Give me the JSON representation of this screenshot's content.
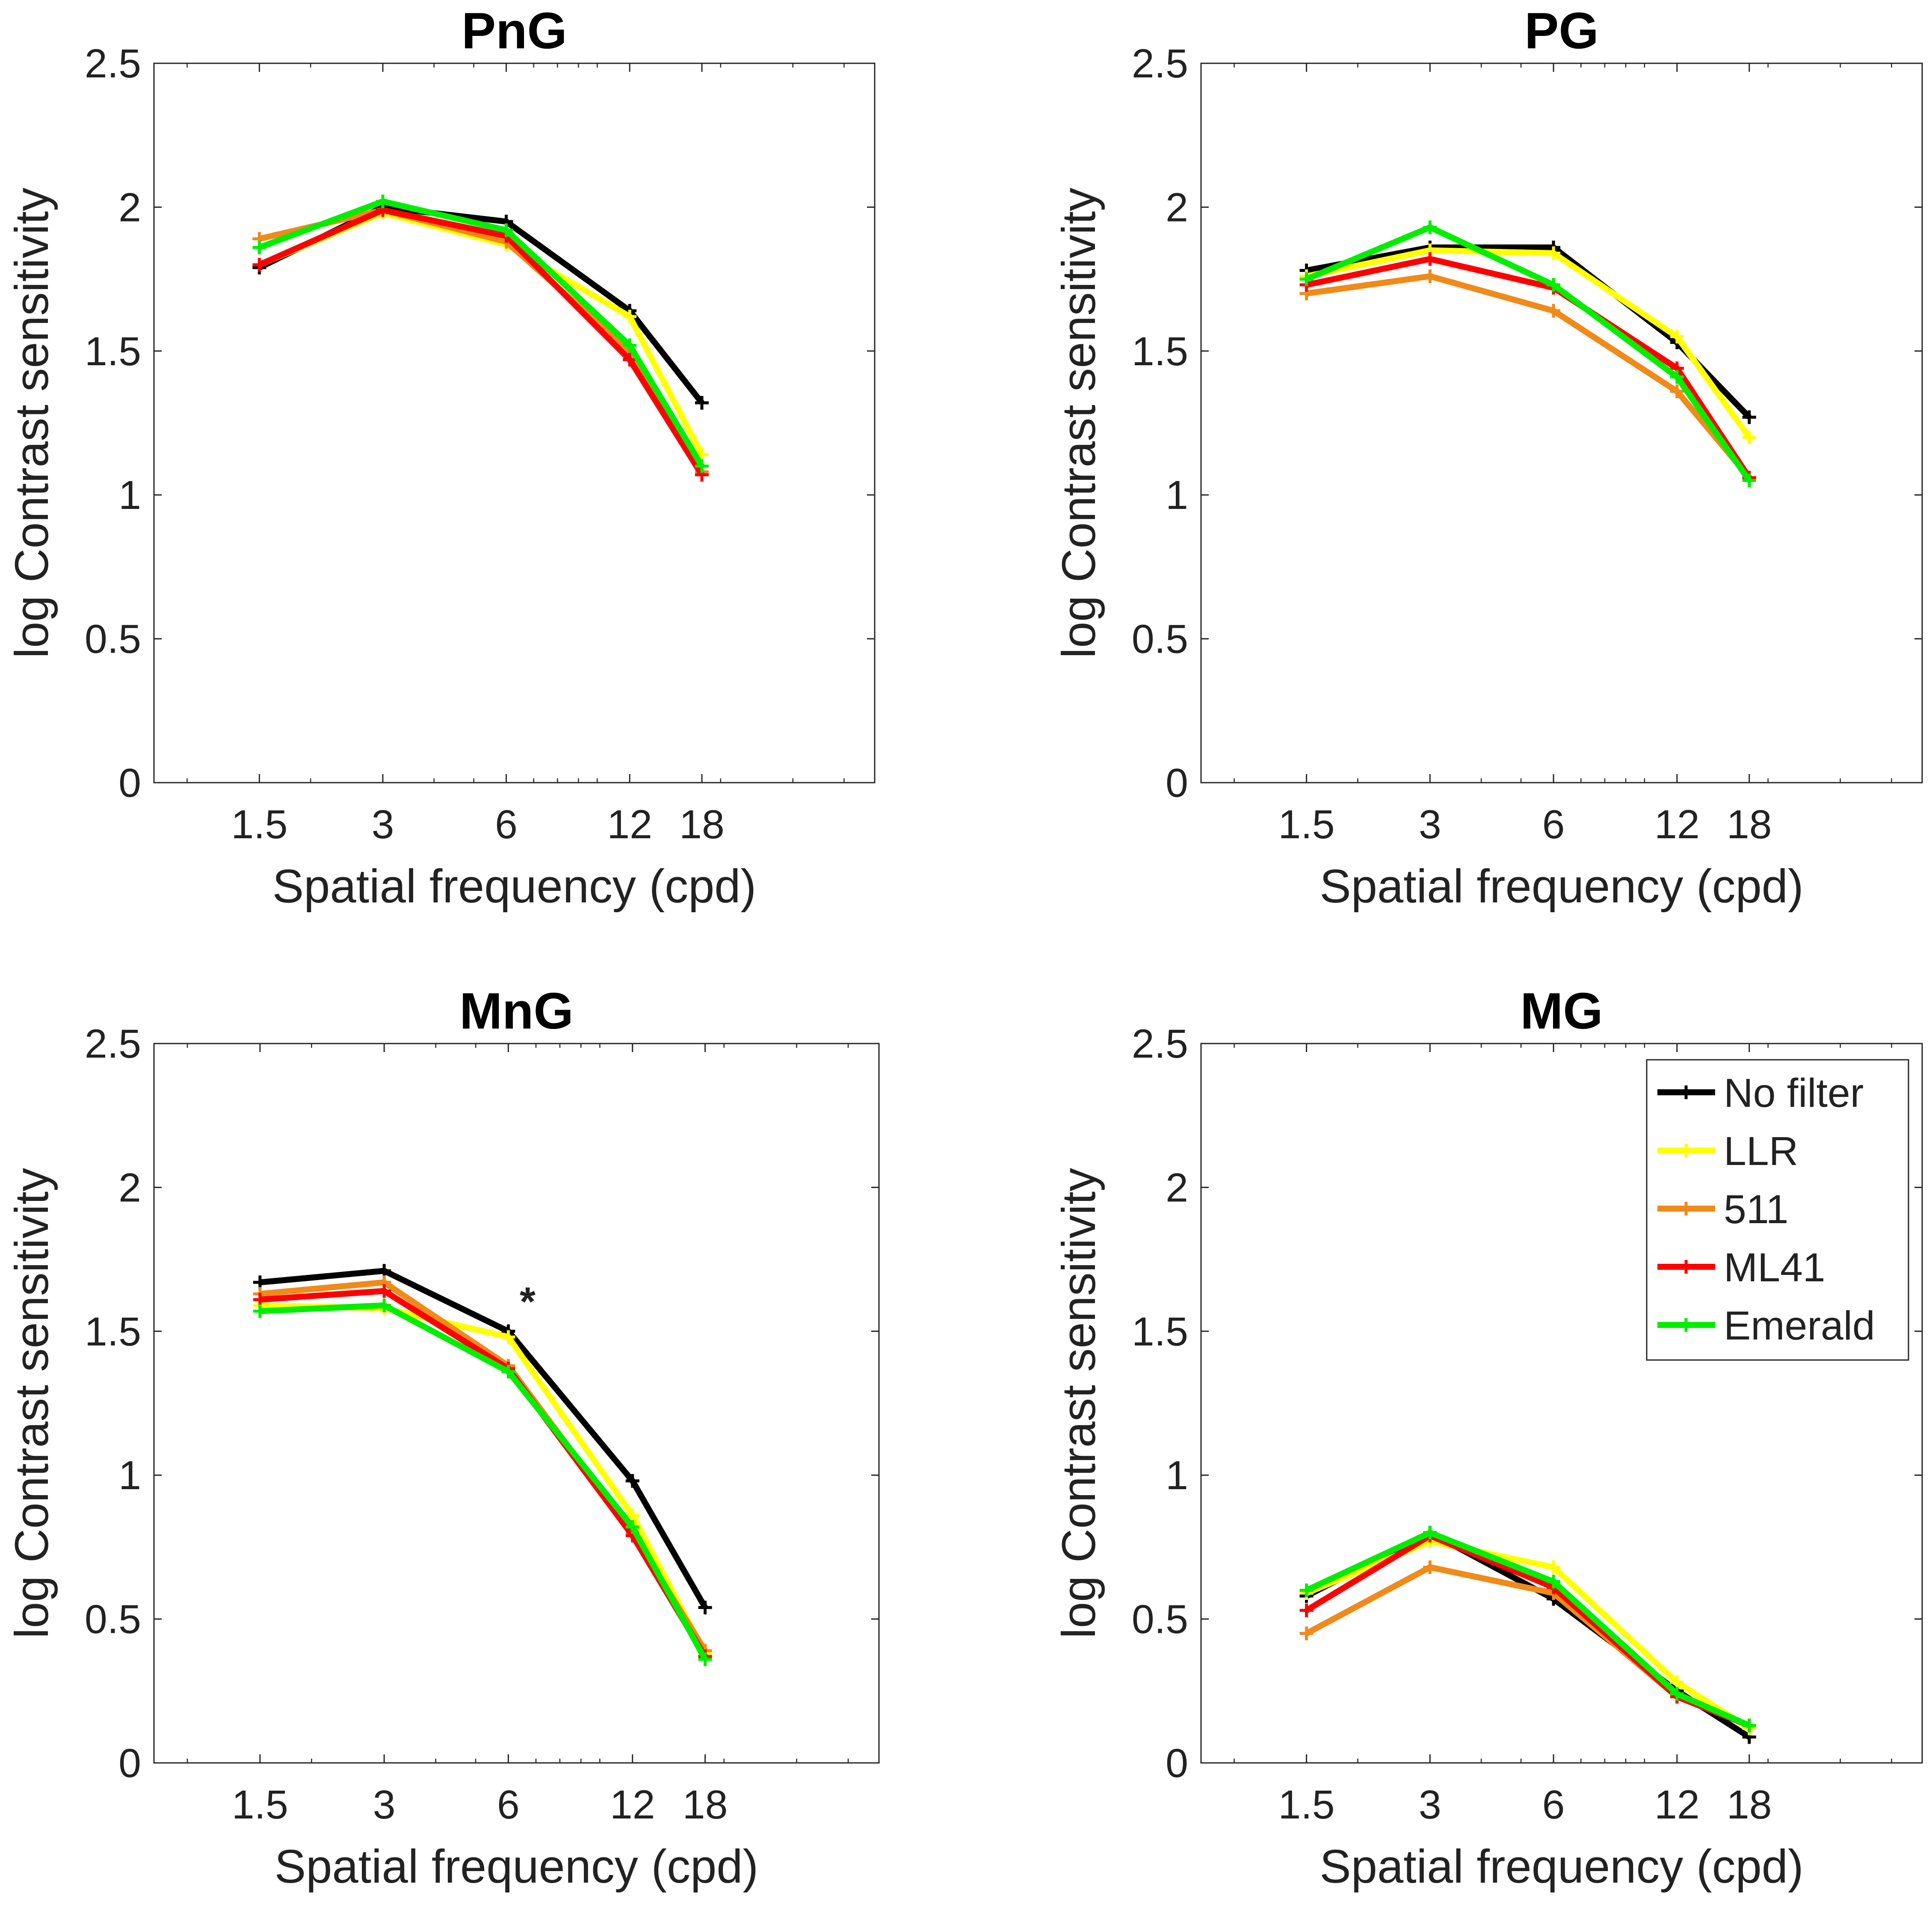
{
  "chart_data": [
    {
      "type": "line",
      "title": "PnG",
      "xlabel": "Spatial frequency (cpd)",
      "ylabel": "log Contrast sensitivity",
      "x_scale": "log",
      "x": [
        1.5,
        3,
        6,
        12,
        18
      ],
      "x_tick_labels": [
        "1.5",
        "3",
        "6",
        "12",
        "18"
      ],
      "ylim": [
        0,
        2.5
      ],
      "y_ticks": [
        "0",
        "0.5",
        "1",
        "1.5",
        "2",
        "2.5"
      ],
      "annotations": [],
      "series": [
        {
          "name": "No filter",
          "color": "#000000",
          "values": [
            1.79,
            2.0,
            1.95,
            1.64,
            1.32
          ]
        },
        {
          "name": "LLR",
          "color": "#ffff00",
          "values": [
            1.8,
            1.98,
            1.87,
            1.62,
            1.14
          ]
        },
        {
          "name": "511",
          "color": "#f08a19",
          "values": [
            1.89,
            1.99,
            1.88,
            1.5,
            1.08
          ]
        },
        {
          "name": "ML41",
          "color": "#ff0000",
          "values": [
            1.8,
            1.99,
            1.9,
            1.47,
            1.07
          ]
        },
        {
          "name": "Emerald",
          "color": "#00ee00",
          "values": [
            1.86,
            2.02,
            1.92,
            1.52,
            1.1
          ]
        }
      ]
    },
    {
      "type": "line",
      "title": "PG",
      "xlabel": "Spatial frequency (cpd)",
      "ylabel": "log Contrast sensitivity",
      "x_scale": "log",
      "x": [
        1.5,
        3,
        6,
        12,
        18
      ],
      "x_tick_labels": [
        "1.5",
        "3",
        "6",
        "12",
        "18"
      ],
      "ylim": [
        0,
        2.5
      ],
      "y_ticks": [
        "0",
        "0.5",
        "1",
        "1.5",
        "2",
        "2.5"
      ],
      "annotations": [],
      "series": [
        {
          "name": "No filter",
          "color": "#000000",
          "values": [
            1.78,
            1.86,
            1.86,
            1.53,
            1.27
          ]
        },
        {
          "name": "LLR",
          "color": "#ffff00",
          "values": [
            1.76,
            1.85,
            1.84,
            1.55,
            1.2
          ]
        },
        {
          "name": "511",
          "color": "#f08a19",
          "values": [
            1.7,
            1.76,
            1.64,
            1.36,
            1.06
          ]
        },
        {
          "name": "ML41",
          "color": "#ff0000",
          "values": [
            1.73,
            1.82,
            1.72,
            1.44,
            1.06
          ]
        },
        {
          "name": "Emerald",
          "color": "#00ee00",
          "values": [
            1.75,
            1.93,
            1.73,
            1.41,
            1.05
          ]
        }
      ]
    },
    {
      "type": "line",
      "title": "MnG",
      "xlabel": "Spatial frequency (cpd)",
      "ylabel": "log Contrast sensitivity",
      "x_scale": "log",
      "x": [
        1.5,
        3,
        6,
        12,
        18
      ],
      "x_tick_labels": [
        "1.5",
        "3",
        "6",
        "12",
        "18"
      ],
      "ylim": [
        0,
        2.5
      ],
      "y_ticks": [
        "0",
        "0.5",
        "1",
        "1.5",
        "2",
        "2.5"
      ],
      "annotations": [
        {
          "text": "*",
          "x": 6,
          "y": 1.6
        }
      ],
      "series": [
        {
          "name": "No filter",
          "color": "#000000",
          "values": [
            1.67,
            1.71,
            1.5,
            0.98,
            0.54
          ]
        },
        {
          "name": "LLR",
          "color": "#ffff00",
          "values": [
            1.59,
            1.58,
            1.48,
            0.86,
            0.38
          ]
        },
        {
          "name": "511",
          "color": "#f08a19",
          "values": [
            1.63,
            1.67,
            1.38,
            0.8,
            0.39
          ]
        },
        {
          "name": "ML41",
          "color": "#ff0000",
          "values": [
            1.61,
            1.64,
            1.37,
            0.79,
            0.37
          ]
        },
        {
          "name": "Emerald",
          "color": "#00ee00",
          "values": [
            1.57,
            1.59,
            1.36,
            0.82,
            0.36
          ]
        }
      ]
    },
    {
      "type": "line",
      "title": "MG",
      "xlabel": "Spatial frequency (cpd)",
      "ylabel": "log Contrast sensitivity",
      "x_scale": "log",
      "x": [
        1.5,
        3,
        6,
        12,
        18
      ],
      "x_tick_labels": [
        "1.5",
        "3",
        "6",
        "12",
        "18"
      ],
      "ylim": [
        0,
        2.5
      ],
      "y_ticks": [
        "0",
        "0.5",
        "1",
        "1.5",
        "2",
        "2.5"
      ],
      "annotations": [],
      "legend": {
        "position": "top-right",
        "entries": [
          "No filter",
          "LLR",
          "511",
          "ML41",
          "Emerald"
        ]
      },
      "series": [
        {
          "name": "No filter",
          "color": "#000000",
          "values": [
            0.58,
            0.8,
            0.57,
            0.25,
            0.09
          ]
        },
        {
          "name": "LLR",
          "color": "#ffff00",
          "values": [
            0.59,
            0.77,
            0.68,
            0.28,
            0.12
          ]
        },
        {
          "name": "511",
          "color": "#f08a19",
          "values": [
            0.45,
            0.68,
            0.59,
            0.23,
            0.13
          ]
        },
        {
          "name": "ML41",
          "color": "#ff0000",
          "values": [
            0.53,
            0.79,
            0.61,
            0.23,
            0.13
          ]
        },
        {
          "name": "Emerald",
          "color": "#00ee00",
          "values": [
            0.6,
            0.8,
            0.63,
            0.24,
            0.13
          ]
        }
      ]
    }
  ]
}
